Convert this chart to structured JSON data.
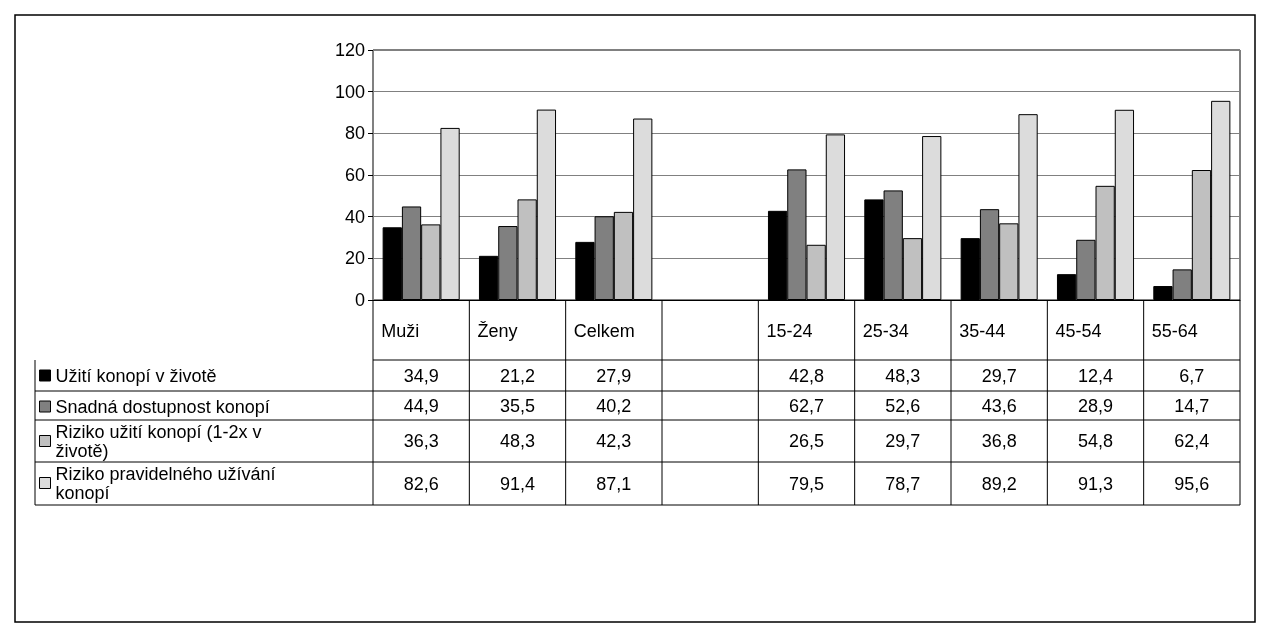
{
  "chart_data": {
    "type": "bar",
    "categories": [
      "Muži",
      "Ženy",
      "Celkem",
      null,
      "15-24",
      "25-34",
      "35-44",
      "45-54",
      "55-64"
    ],
    "series": [
      {
        "name": "Užití konopí v životě",
        "color": "#000000",
        "values": [
          34.9,
          21.2,
          27.9,
          null,
          42.8,
          48.3,
          29.7,
          12.4,
          6.7
        ],
        "value_labels": [
          "34,9",
          "21,2",
          "27,9",
          null,
          "42,8",
          "48,3",
          "29,7",
          "12,4",
          "6,7"
        ]
      },
      {
        "name": "Snadná dostupnost konopí",
        "color": "#808080",
        "values": [
          44.9,
          35.5,
          40.2,
          null,
          62.7,
          52.6,
          43.6,
          28.9,
          14.7
        ],
        "value_labels": [
          "44,9",
          "35,5",
          "40,2",
          null,
          "62,7",
          "52,6",
          "43,6",
          "28,9",
          "14,7"
        ]
      },
      {
        "name": "Riziko užití konopí (1-2x v životě)",
        "color": "#c0c0c0",
        "values": [
          36.3,
          48.3,
          42.3,
          null,
          26.5,
          29.7,
          36.8,
          54.8,
          62.4
        ],
        "value_labels": [
          "36,3",
          "48,3",
          "42,3",
          null,
          "26,5",
          "29,7",
          "36,8",
          "54,8",
          "62,4"
        ]
      },
      {
        "name": "Riziko pravidelného užívání konopí",
        "color": "#dcdcdc",
        "values": [
          82.6,
          91.4,
          87.1,
          null,
          79.5,
          78.7,
          89.2,
          91.3,
          95.6
        ],
        "value_labels": [
          "82,6",
          "91,4",
          "87,1",
          null,
          "79,5",
          "78,7",
          "89,2",
          "91,3",
          "95,6"
        ]
      }
    ],
    "ylim": [
      0,
      120
    ],
    "yticks": [
      0,
      20,
      40,
      60,
      80,
      100,
      120
    ],
    "grid": "y",
    "legend": "bottom left"
  }
}
